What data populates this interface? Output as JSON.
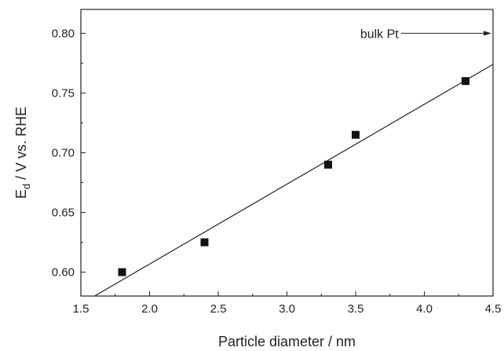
{
  "chart_data": {
    "type": "scatter",
    "xlabel": "Particle diameter / nm",
    "ylabel": {
      "main": "E",
      "subscript": "d",
      "rest": " / V vs. RHE"
    },
    "xlim": [
      1.5,
      4.5
    ],
    "ylim": [
      0.58,
      0.82
    ],
    "x_ticks": [
      "1.5",
      "2.0",
      "2.5",
      "3.0",
      "3.5",
      "4.0",
      "4.5"
    ],
    "y_ticks": [
      "0.60",
      "0.65",
      "0.70",
      "0.75",
      "0.80"
    ],
    "grid": false,
    "series": [
      {
        "marker": "square",
        "color": "#111111",
        "points": [
          {
            "x": 1.8,
            "y": 0.6
          },
          {
            "x": 2.4,
            "y": 0.625
          },
          {
            "x": 3.3,
            "y": 0.69
          },
          {
            "x": 3.5,
            "y": 0.715
          },
          {
            "x": 4.3,
            "y": 0.76
          }
        ]
      }
    ],
    "fit_line": {
      "x": [
        1.6,
        4.5
      ],
      "y": [
        0.58,
        0.774
      ]
    },
    "annotation": {
      "text": "bulk Pt",
      "arrow_y": 0.8,
      "arrow_x_start": 3.83,
      "arrow_x_end": 4.5
    }
  }
}
